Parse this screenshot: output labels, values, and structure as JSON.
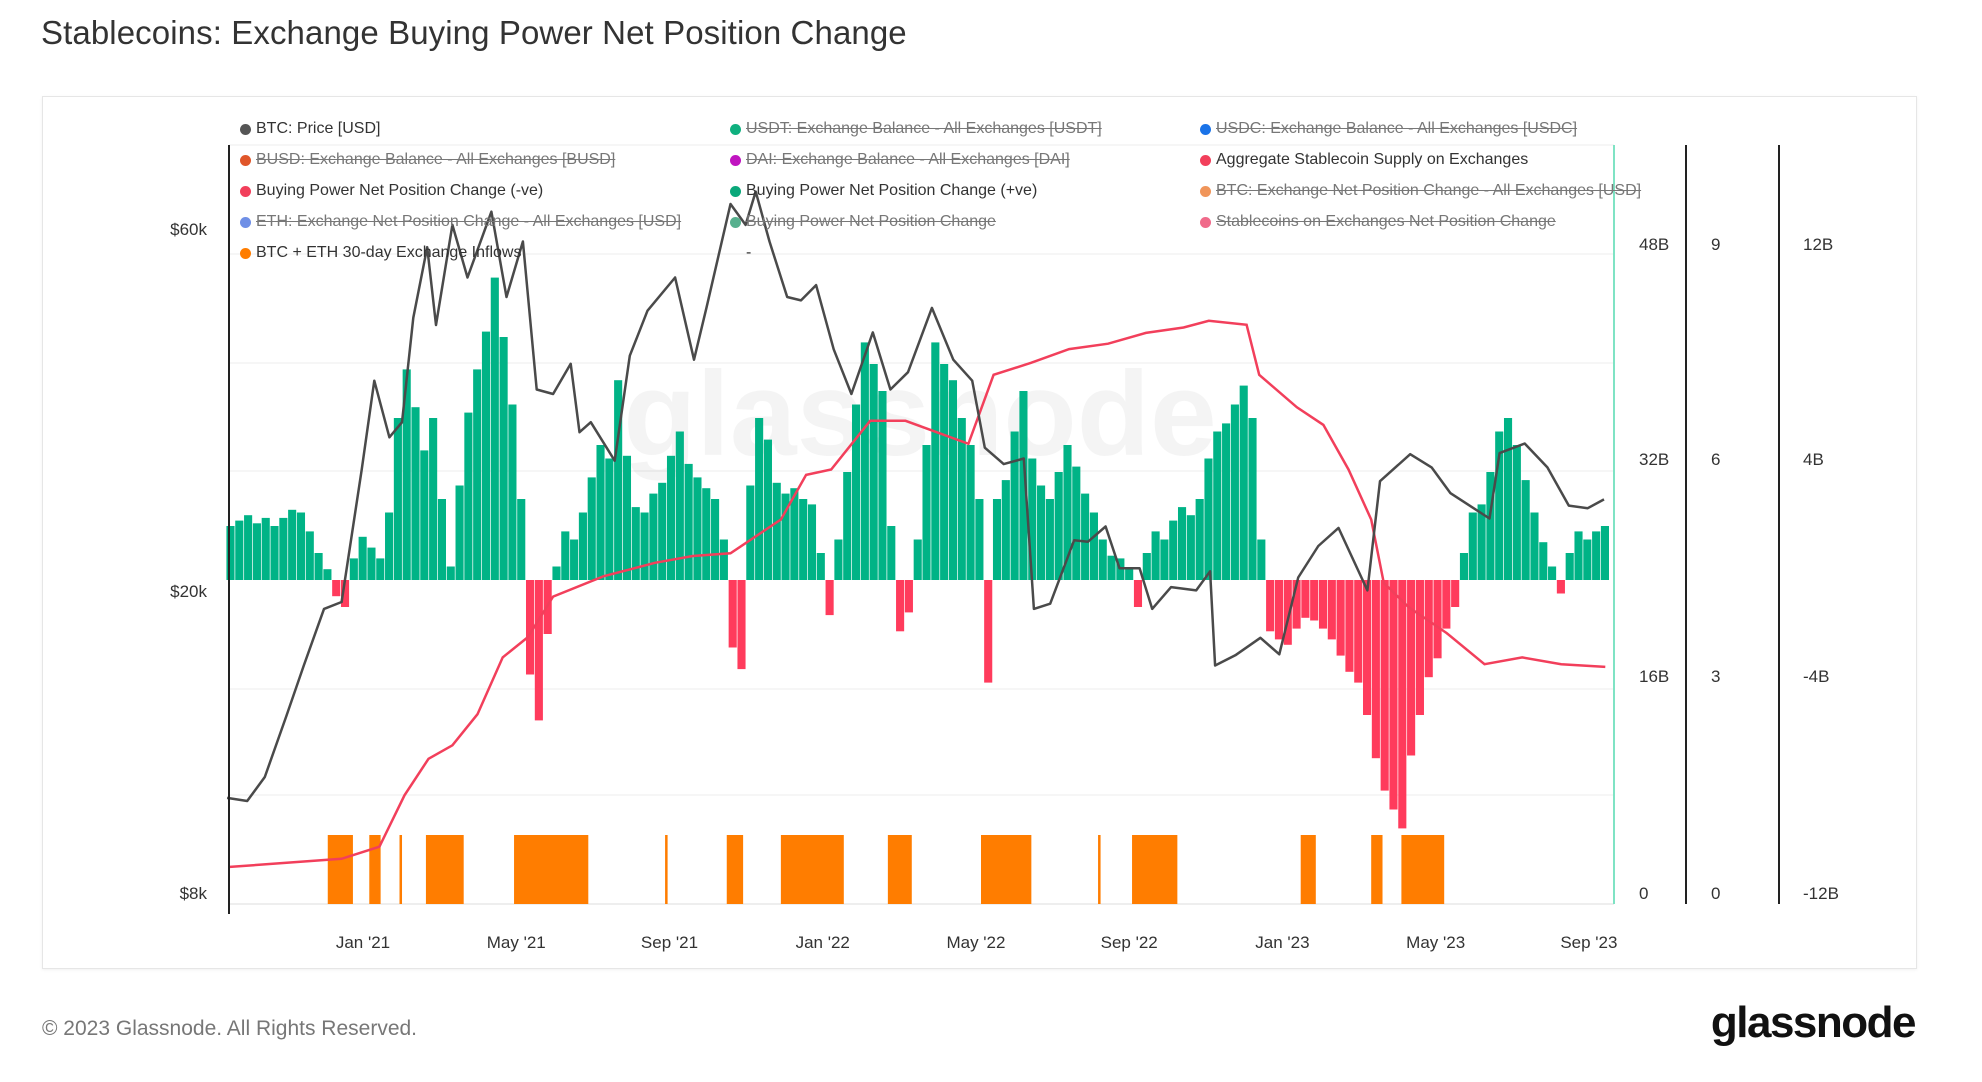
{
  "title": "Stablecoins: Exchange Buying Power Net Position Change",
  "footer": {
    "copyright": "© 2023 Glassnode. All Rights Reserved.",
    "logo": "glassnode"
  },
  "watermark": "glassnode",
  "legend": [
    {
      "label": "BTC: Price [USD]",
      "color": "#555555",
      "active": true
    },
    {
      "label": "USDT: Exchange Balance - All Exchanges [USDT]",
      "color": "#0fb07f",
      "active": false
    },
    {
      "label": "USDC: Exchange Balance - All Exchanges [USDC]",
      "color": "#1a73e8",
      "active": false
    },
    {
      "label": "BUSD: Exchange Balance - All Exchanges [BUSD]",
      "color": "#e0562a",
      "active": false
    },
    {
      "label": "DAI: Exchange Balance - All Exchanges [DAI]",
      "color": "#c014c0",
      "active": false
    },
    {
      "label": "Aggregate Stablecoin Supply on Exchanges",
      "color": "#f23f5b",
      "active": true
    },
    {
      "label": "Buying Power Net Position Change (-ve)",
      "color": "#f23f5b",
      "active": true
    },
    {
      "label": "Buying Power Net Position Change (+ve)",
      "color": "#0aa87a",
      "active": true
    },
    {
      "label": "BTC: Exchange Net Position Change - All Exchanges [USD]",
      "color": "#f0955a",
      "active": false
    },
    {
      "label": "ETH: Exchange Net Position Change - All Exchanges [USD]",
      "color": "#6f8fe6",
      "active": false
    },
    {
      "label": "Buying Power Net Position Change",
      "color": "#57b08e",
      "active": false
    },
    {
      "label": "Stablecoins on Exchanges Net Position Change",
      "color": "#f06a8a",
      "active": false
    },
    {
      "label": "BTC + ETH 30-day Exchange Inflows",
      "color": "#ff7d00",
      "active": true
    },
    {
      "label": "-",
      "color": "",
      "active": true
    }
  ],
  "chart_data": {
    "type": "bar",
    "title": "Stablecoins: Exchange Buying Power Net Position Change",
    "grid": true,
    "legend_position": "top-left",
    "x_ticks": [
      "Jan '21",
      "May '21",
      "Sep '21",
      "Jan '22",
      "May '22",
      "Sep '22",
      "Jan '23",
      "May '23",
      "Sep '23"
    ],
    "axes": {
      "left_price": {
        "ticks": [
          "$60k",
          "$20k",
          "$8k"
        ],
        "scale": "log"
      },
      "right_supply": {
        "ticks": [
          "48B",
          "32B",
          "16B",
          "0"
        ],
        "range": [
          0,
          52
        ]
      },
      "right_inflows": {
        "ticks": [
          "9",
          "6",
          "3",
          "0"
        ],
        "range": [
          0,
          9
        ]
      },
      "right_net_position": {
        "ticks": [
          "12B",
          "4B",
          "-4B",
          "-12B"
        ],
        "range": [
          -12,
          12
        ]
      }
    },
    "colors": {
      "positive": "#00b386",
      "negative": "#ff3b5c",
      "price": "#4a4a4a",
      "supply": "#f23f5b",
      "inflows": "#ff7d00"
    },
    "btc_price_usd": [
      [
        "2020-09-15",
        10700
      ],
      [
        "2020-10-01",
        10600
      ],
      [
        "2020-10-15",
        11400
      ],
      [
        "2020-11-01",
        13700
      ],
      [
        "2020-11-15",
        16000
      ],
      [
        "2020-12-01",
        19000
      ],
      [
        "2020-12-15",
        19400
      ],
      [
        "2020-12-31",
        29000
      ],
      [
        "2021-01-10",
        38000
      ],
      [
        "2021-01-22",
        32000
      ],
      [
        "2021-02-01",
        33500
      ],
      [
        "2021-02-10",
        46000
      ],
      [
        "2021-02-21",
        57000
      ],
      [
        "2021-02-28",
        45000
      ],
      [
        "2021-03-13",
        61000
      ],
      [
        "2021-03-25",
        52000
      ],
      [
        "2021-04-13",
        63500
      ],
      [
        "2021-04-25",
        49000
      ],
      [
        "2021-05-08",
        58000
      ],
      [
        "2021-05-19",
        37000
      ],
      [
        "2021-06-01",
        36500
      ],
      [
        "2021-06-15",
        40000
      ],
      [
        "2021-06-22",
        32500
      ],
      [
        "2021-07-01",
        33500
      ],
      [
        "2021-07-20",
        29800
      ],
      [
        "2021-08-01",
        41000
      ],
      [
        "2021-08-15",
        47000
      ],
      [
        "2021-09-06",
        52000
      ],
      [
        "2021-09-21",
        40500
      ],
      [
        "2021-10-01",
        47500
      ],
      [
        "2021-10-20",
        65000
      ],
      [
        "2021-11-01",
        61000
      ],
      [
        "2021-11-09",
        67500
      ],
      [
        "2021-11-20",
        58000
      ],
      [
        "2021-12-04",
        49000
      ],
      [
        "2021-12-15",
        48500
      ],
      [
        "2021-12-27",
        50800
      ],
      [
        "2022-01-10",
        41800
      ],
      [
        "2022-01-24",
        36500
      ],
      [
        "2022-02-10",
        44000
      ],
      [
        "2022-02-24",
        37000
      ],
      [
        "2022-03-10",
        39000
      ],
      [
        "2022-03-29",
        47400
      ],
      [
        "2022-04-15",
        40500
      ],
      [
        "2022-04-30",
        38000
      ],
      [
        "2022-05-10",
        31000
      ],
      [
        "2022-05-25",
        29500
      ],
      [
        "2022-06-10",
        30000
      ],
      [
        "2022-06-18",
        19000
      ],
      [
        "2022-07-01",
        19300
      ],
      [
        "2022-07-20",
        23400
      ],
      [
        "2022-07-31",
        23300
      ],
      [
        "2022-08-14",
        24400
      ],
      [
        "2022-08-25",
        21500
      ],
      [
        "2022-09-10",
        21500
      ],
      [
        "2022-09-20",
        19000
      ],
      [
        "2022-10-05",
        20300
      ],
      [
        "2022-10-25",
        20100
      ],
      [
        "2022-11-05",
        21300
      ],
      [
        "2022-11-09",
        16000
      ],
      [
        "2022-11-25",
        16500
      ],
      [
        "2022-12-15",
        17400
      ],
      [
        "2022-12-30",
        16550
      ],
      [
        "2023-01-14",
        20900
      ],
      [
        "2023-01-30",
        23000
      ],
      [
        "2023-02-15",
        24300
      ],
      [
        "2023-03-10",
        20100
      ],
      [
        "2023-03-20",
        28000
      ],
      [
        "2023-04-13",
        30400
      ],
      [
        "2023-04-30",
        29200
      ],
      [
        "2023-05-15",
        27000
      ],
      [
        "2023-06-15",
        25000
      ],
      [
        "2023-06-23",
        30500
      ],
      [
        "2023-07-13",
        31400
      ],
      [
        "2023-07-31",
        29200
      ],
      [
        "2023-08-17",
        26000
      ],
      [
        "2023-09-01",
        25800
      ],
      [
        "2023-09-14",
        26500
      ]
    ],
    "aggregate_supply_billion": [
      [
        "2020-09-16",
        2.0
      ],
      [
        "2020-12-15",
        2.6
      ],
      [
        "2021-01-14",
        3.5
      ],
      [
        "2021-02-03",
        7.3
      ],
      [
        "2021-02-22",
        10
      ],
      [
        "2021-03-13",
        11
      ],
      [
        "2021-04-02",
        13.3
      ],
      [
        "2021-04-22",
        17.5
      ],
      [
        "2021-05-12",
        19
      ],
      [
        "2021-06-01",
        22
      ],
      [
        "2021-07-11",
        23.5
      ],
      [
        "2021-08-21",
        24.5
      ],
      [
        "2021-09-20",
        25
      ],
      [
        "2021-10-20",
        25.2
      ],
      [
        "2021-11-29",
        27.7
      ],
      [
        "2021-12-19",
        31
      ],
      [
        "2022-01-08",
        31.4
      ],
      [
        "2022-02-08",
        35
      ],
      [
        "2022-03-08",
        35
      ],
      [
        "2022-04-27",
        33.3
      ],
      [
        "2022-05-17",
        38.4
      ],
      [
        "2022-06-16",
        39.3
      ],
      [
        "2022-07-16",
        40.3
      ],
      [
        "2022-08-16",
        40.7
      ],
      [
        "2022-09-15",
        41.5
      ],
      [
        "2022-10-15",
        41.9
      ],
      [
        "2022-11-04",
        42.4
      ],
      [
        "2022-12-04",
        42.1
      ],
      [
        "2022-12-14",
        38.4
      ],
      [
        "2023-01-13",
        36
      ],
      [
        "2023-02-03",
        34.7
      ],
      [
        "2023-02-23",
        31.4
      ],
      [
        "2023-03-13",
        27.7
      ],
      [
        "2023-03-23",
        23
      ],
      [
        "2023-04-12",
        21.2
      ],
      [
        "2023-05-12",
        19.3
      ],
      [
        "2023-06-11",
        17
      ],
      [
        "2023-07-11",
        17.5
      ],
      [
        "2023-08-11",
        17
      ],
      [
        "2023-09-15",
        16.8
      ]
    ],
    "buying_power_net_change_billion": {
      "start": "2020-09-18",
      "step_days": 7,
      "values": [
        2.0,
        2.2,
        2.4,
        2.1,
        2.3,
        2.0,
        2.3,
        2.6,
        2.5,
        1.8,
        1.0,
        0.4,
        -0.6,
        -1.0,
        0.8,
        1.6,
        1.2,
        0.8,
        2.5,
        6.0,
        7.8,
        6.4,
        4.8,
        6.0,
        3.0,
        0.5,
        3.5,
        6.2,
        7.8,
        9.2,
        11.2,
        9.0,
        6.5,
        3.0,
        -3.5,
        -5.2,
        -2.0,
        0.5,
        1.8,
        1.5,
        2.5,
        3.8,
        5.0,
        4.5,
        7.4,
        4.6,
        2.7,
        2.5,
        3.2,
        3.6,
        4.6,
        5.5,
        4.3,
        3.8,
        3.4,
        3.0,
        1.5,
        -2.5,
        -3.3,
        3.5,
        6.0,
        5.2,
        3.6,
        3.2,
        3.4,
        3.0,
        2.8,
        1.0,
        -1.3,
        1.5,
        4.0,
        6.5,
        8.8,
        8.0,
        7.0,
        2.0,
        -1.9,
        -1.2,
        1.5,
        5.0,
        8.8,
        8.0,
        7.4,
        6.0,
        5.0,
        3.0,
        -3.8,
        3.0,
        3.7,
        5.5,
        7.0,
        4.5,
        3.5,
        3.0,
        4.0,
        5.0,
        4.2,
        3.2,
        2.5,
        1.5,
        0.9,
        0.8,
        0.4,
        -1.0,
        1.0,
        1.8,
        1.5,
        2.2,
        2.7,
        2.4,
        3.0,
        4.5,
        5.5,
        5.8,
        6.5,
        7.2,
        6.0,
        1.5,
        -1.9,
        -2.2,
        -2.4,
        -1.8,
        -1.4,
        -1.5,
        -1.8,
        -2.2,
        -2.8,
        -3.4,
        -3.8,
        -5.0,
        -6.6,
        -7.8,
        -8.5,
        -9.2,
        -6.5,
        -5.0,
        -3.6,
        -2.9,
        -1.8,
        -1.0,
        1.0,
        2.5,
        2.8,
        4.0,
        5.5,
        6.0,
        5.0,
        3.7,
        2.5,
        1.4,
        0.5,
        -0.5,
        1.0,
        1.8,
        1.5,
        1.8,
        2.0
      ]
    },
    "btc_eth_30d_inflow_signal_periods": [
      [
        "2020-12-04",
        "2020-12-24"
      ],
      [
        "2021-01-06",
        "2021-01-15"
      ],
      [
        "2021-01-30",
        "2021-02-01"
      ],
      [
        "2021-02-20",
        "2021-03-22"
      ],
      [
        "2021-05-01",
        "2021-06-29"
      ],
      [
        "2021-08-29",
        "2021-08-31"
      ],
      [
        "2021-10-17",
        "2021-10-30"
      ],
      [
        "2021-11-29",
        "2022-01-18"
      ],
      [
        "2022-02-22",
        "2022-03-13"
      ],
      [
        "2022-05-07",
        "2022-06-16"
      ],
      [
        "2022-08-08",
        "2022-08-10"
      ],
      [
        "2022-09-04",
        "2022-10-10"
      ],
      [
        "2023-01-16",
        "2023-01-28"
      ],
      [
        "2023-03-13",
        "2023-03-22"
      ],
      [
        "2023-04-06",
        "2023-05-10"
      ]
    ],
    "inflow_signal_value": 1
  }
}
